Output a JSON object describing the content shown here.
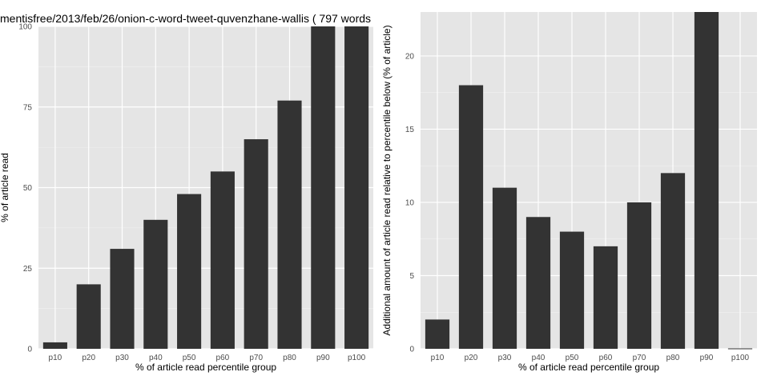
{
  "title": "mentisfree/2013/feb/26/onion-c-word-tweet-quvenzhane-wallis ( 797 words",
  "chart_data": [
    {
      "type": "bar",
      "xlabel": "% of article read percentile group",
      "ylabel": "% of article read",
      "categories": [
        "p10",
        "p20",
        "p30",
        "p40",
        "p50",
        "p60",
        "p70",
        "p80",
        "p90",
        "p100"
      ],
      "values": [
        2,
        20,
        31,
        40,
        48,
        55,
        65,
        77,
        100,
        100
      ],
      "ylim": [
        0,
        100
      ],
      "yticks": [
        0,
        25,
        50,
        75,
        100
      ],
      "grid": true
    },
    {
      "type": "bar",
      "xlabel": "% of article read percentile group",
      "ylabel": "Additional amount of article read relative to percentile below (% of article)",
      "categories": [
        "p10",
        "p20",
        "p30",
        "p40",
        "p50",
        "p60",
        "p70",
        "p80",
        "p90",
        "p100"
      ],
      "values": [
        2,
        18,
        11,
        9,
        8,
        7,
        10,
        12,
        23,
        0
      ],
      "ylim": [
        0,
        23
      ],
      "yticks": [
        0,
        5,
        10,
        15,
        20
      ],
      "grid": true
    }
  ],
  "colors": {
    "panel": "#e5e5e5",
    "bar": "#333333",
    "grid_major": "#ffffff",
    "grid_minor": "#f2f2f2"
  }
}
